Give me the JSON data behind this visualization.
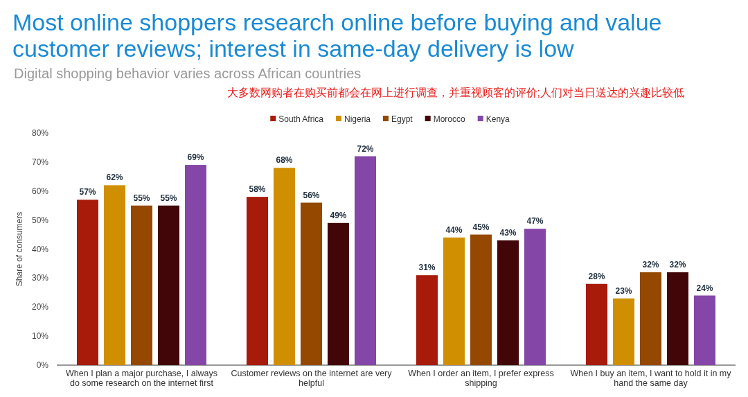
{
  "chart_data": {
    "type": "bar",
    "title": "Most online shoppers research online before buying and value customer reviews; interest in same-day delivery is low",
    "subtitle": "Digital shopping behavior varies across African countries",
    "annotations": [
      "大多数网购者在购买前都会在网上进行调查，并重视顾客的评价;人们对当日送达的兴趣比较低"
    ],
    "ylabel": "Share of consumers",
    "categories": [
      "When I plan a major purchase, I always do some research on the internet first",
      "Customer reviews on the internet are very helpful",
      "When I order an item, I prefer express shipping",
      "When I buy an item, I want to hold it in my hand the same day"
    ],
    "series": [
      {
        "name": "South Africa",
        "color": "#a81a0a",
        "values": [
          57,
          58,
          31,
          28
        ],
        "value_labels": [
          "57%",
          "58%",
          "31%",
          "28%"
        ]
      },
      {
        "name": "Nigeria",
        "color": "#d08f00",
        "values": [
          62,
          68,
          44,
          23
        ],
        "value_labels": [
          "62%",
          "68%",
          "44%",
          "23%"
        ]
      },
      {
        "name": "Egypt",
        "color": "#944800",
        "values": [
          55,
          56,
          45,
          32
        ],
        "value_labels": [
          "55%",
          "56%",
          "45%",
          "32%"
        ]
      },
      {
        "name": "Morocco",
        "color": "#420508",
        "values": [
          55,
          49,
          43,
          32
        ],
        "value_labels": [
          "55%",
          "49%",
          "43%",
          "32%"
        ]
      },
      {
        "name": "Kenya",
        "color": "#8447a8",
        "values": [
          69,
          72,
          47,
          24
        ],
        "value_labels": [
          "69%",
          "72%",
          "47%",
          "24%"
        ]
      }
    ],
    "ylim": [
      0,
      80
    ],
    "yticks": [
      {
        "value": 0,
        "label": "0%"
      },
      {
        "value": 10,
        "label": "10%"
      },
      {
        "value": 20,
        "label": "20%"
      },
      {
        "value": 30,
        "label": "30%"
      },
      {
        "value": 40,
        "label": "40%"
      },
      {
        "value": 50,
        "label": "50%"
      },
      {
        "value": 60,
        "label": "60%"
      },
      {
        "value": 70,
        "label": "70%"
      },
      {
        "value": 80,
        "label": "80%"
      }
    ],
    "grid": false,
    "legend": "top"
  }
}
